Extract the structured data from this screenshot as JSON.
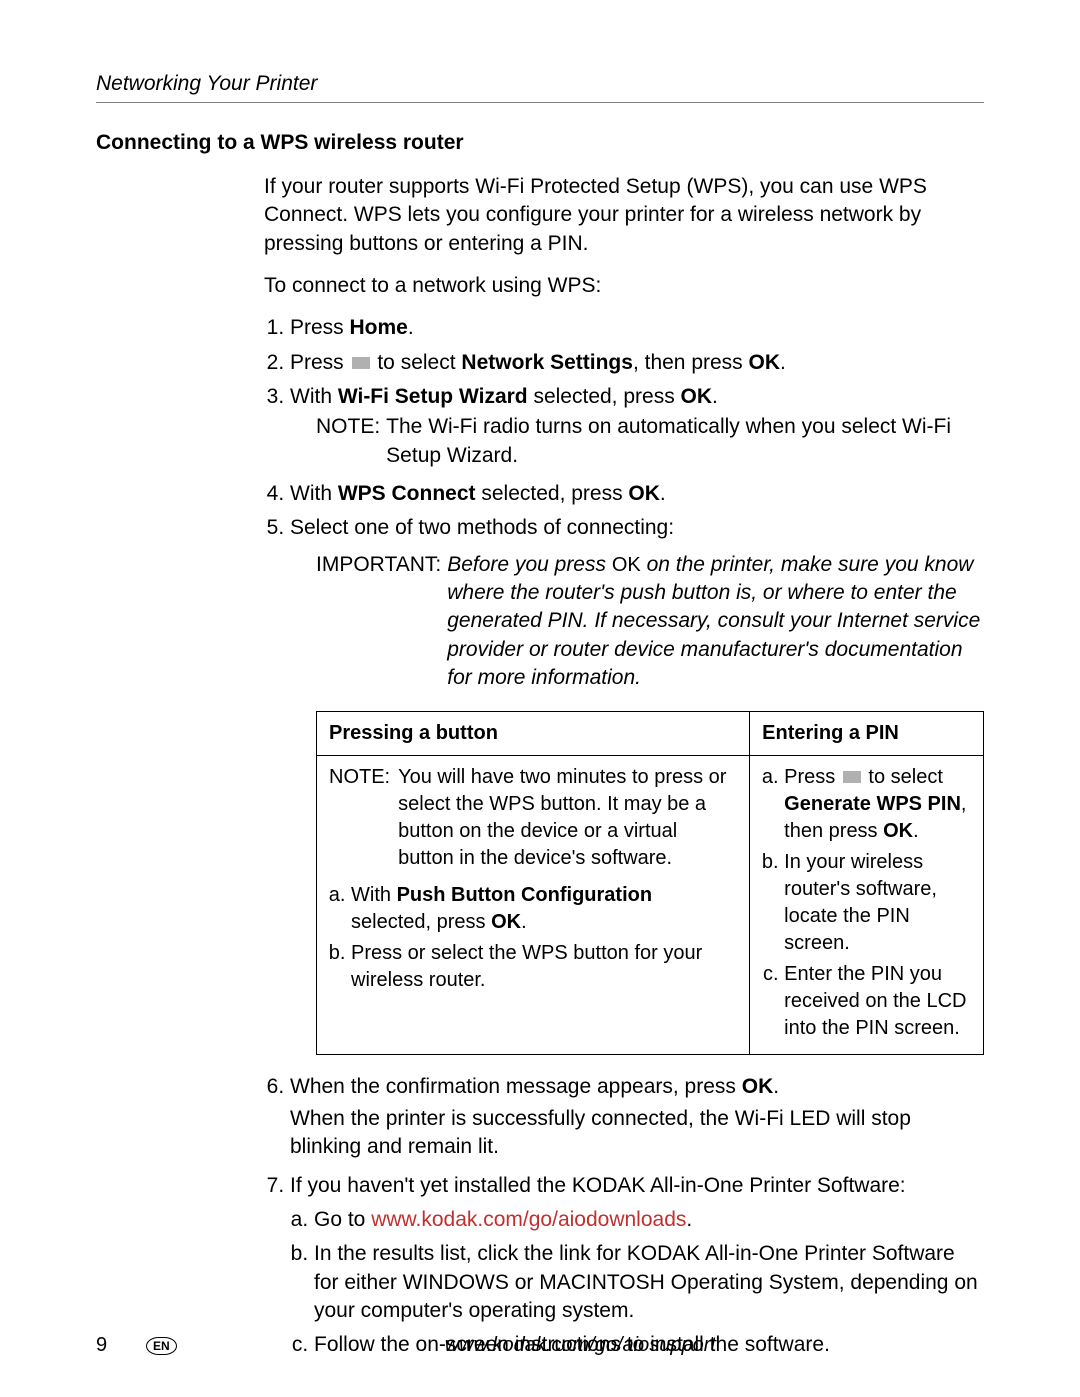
{
  "header": {
    "running_head": "Networking Your Printer"
  },
  "section": {
    "title": "Connecting to a WPS wireless router",
    "intro": "If your router supports Wi-Fi Protected Setup (WPS), you can use WPS Connect. WPS lets you configure your printer for a wireless network by pressing buttons or entering a PIN.",
    "lead_in": "To connect to a network using WPS:"
  },
  "steps": {
    "s1_pre": "Press ",
    "s1_bold": "Home",
    "s1_post": ".",
    "s2_pre": "Press ",
    "s2_mid": " to select ",
    "s2_bold": "Network Settings",
    "s2_post1": ", then press ",
    "s2_bold2": "OK",
    "s2_post2": ".",
    "s3_pre": "With ",
    "s3_bold": "Wi-Fi Setup Wizard",
    "s3_post1": " selected, press ",
    "s3_bold2": "OK",
    "s3_post2": ".",
    "s3_note_label": "NOTE:",
    "s3_note_text": "The Wi-Fi radio turns on automatically when you select Wi-Fi Setup Wizard.",
    "s4_pre": "With ",
    "s4_bold": "WPS Connect",
    "s4_post1": " selected, press ",
    "s4_bold2": "OK",
    "s4_post2": ".",
    "s5_text": "Select one of two methods of connecting:",
    "s5_important_label": "IMPORTANT:",
    "s5_important_pre": "Before you press ",
    "s5_important_ok": "OK",
    "s5_important_post": " on the printer, make sure you know where the router's push button is, or where to enter the generated PIN. If necessary, consult your Internet service provider or router device manufacturer's documentation for more information.",
    "s6_pre": "When the confirmation message appears, press ",
    "s6_bold": "OK",
    "s6_post": ".",
    "s6_follow": "When the printer is successfully connected, the Wi-Fi LED will stop blinking and remain lit.",
    "s7_text": "If you haven't yet installed the KODAK All-in-One Printer Software:",
    "s7a_pre": "Go to ",
    "s7a_link": "www.kodak.com/go/aiodownloads",
    "s7a_post": ".",
    "s7b": "In the results list, click the link for KODAK All-in-One Printer Software for either WINDOWS or MACINTOSH Operating System, depending on your computer's operating system.",
    "s7c": "Follow the on-screen instructions to install the software."
  },
  "table": {
    "col1_header": "Pressing a button",
    "col2_header": "Entering a PIN",
    "col1_note_label": "NOTE:",
    "col1_note_text": "You will have two minutes to press or select the WPS button. It may be a button on the device or a virtual button in the device's software.",
    "col1_a_pre": "With ",
    "col1_a_bold": "Push Button Configuration",
    "col1_a_mid": " selected, press ",
    "col1_a_bold2": "OK",
    "col1_a_post": ".",
    "col1_b": "Press or select the WPS button for your wireless router.",
    "col2_a_pre": "Press ",
    "col2_a_mid": " to select ",
    "col2_a_bold": "Generate WPS PIN",
    "col2_a_post1": ", then press ",
    "col2_a_bold2": "OK",
    "col2_a_post2": ".",
    "col2_b": "In your wireless router's software, locate the PIN screen.",
    "col2_c": "Enter the PIN you received on the LCD into the PIN screen."
  },
  "footer": {
    "page_number": "9",
    "lang": "EN",
    "url": "www.kodak.com/go/aiosupport"
  },
  "colors": {
    "text": "#000000",
    "rule": "#808080",
    "link": "#c22f2f",
    "icon_gray": "#b0b0b0",
    "background": "#ffffff"
  },
  "typography": {
    "body_size_pt": 16,
    "title_weight": 700,
    "italic_blocks": [
      "running_head",
      "important_text",
      "footer_url"
    ]
  }
}
